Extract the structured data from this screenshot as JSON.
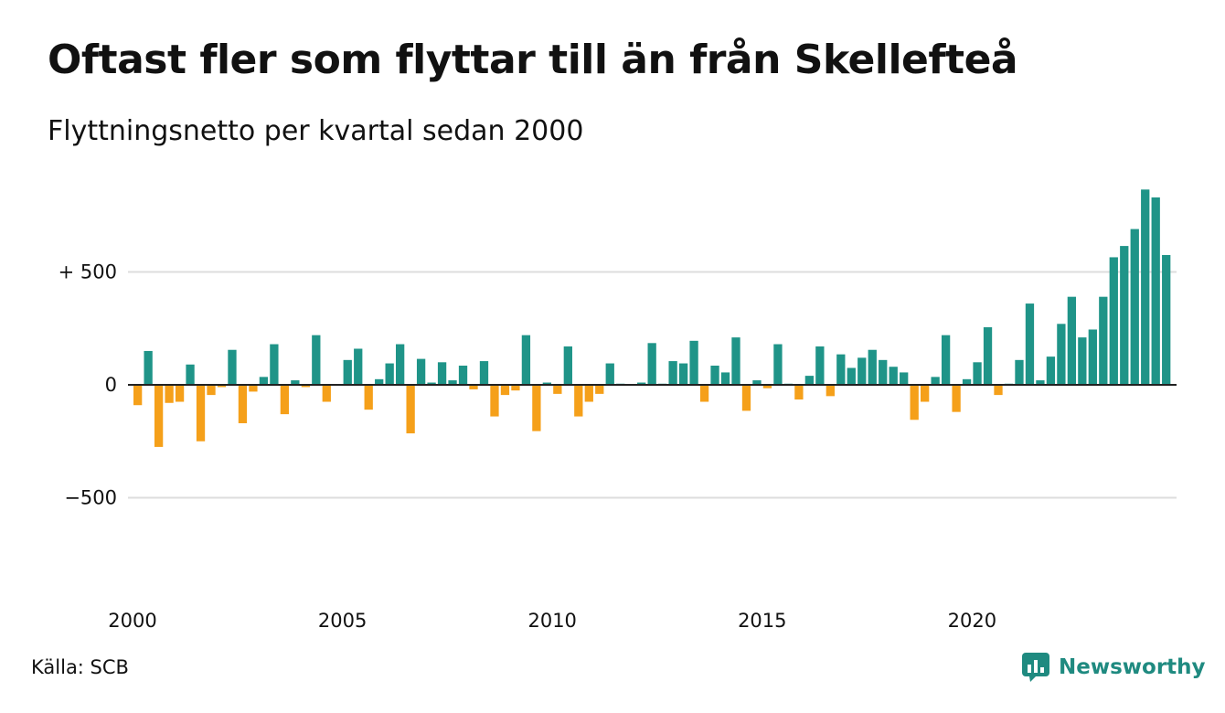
{
  "title": "Oftast fler som flyttar till än från Skellefteå",
  "subtitle": "Flyttningsnetto per kvartal sedan 2000",
  "source": "Källa: SCB",
  "brand": {
    "name": "Newsworthy",
    "icon": "chart-bubble-icon"
  },
  "colors": {
    "positive": "#1f9488",
    "negative": "#f5a01a",
    "grid": "#dddddd",
    "brand": "#1f8a80"
  },
  "chart_data": {
    "type": "bar",
    "title": "Oftast fler som flyttar till än från Skellefteå",
    "subtitle": "Flyttningsnetto per kvartal sedan 2000",
    "xlabel": "",
    "ylabel": "",
    "ylim": [
      -850,
      850
    ],
    "grid": true,
    "y_ticks": [
      {
        "value": 500,
        "label": "+ 500"
      },
      {
        "value": 0,
        "label": "0"
      },
      {
        "value": -500,
        "label": "−500"
      }
    ],
    "x_ticks": [
      {
        "value": 2000,
        "label": "2000"
      },
      {
        "value": 2005,
        "label": "2005"
      },
      {
        "value": 2010,
        "label": "2010"
      },
      {
        "value": 2015,
        "label": "2015"
      },
      {
        "value": 2020,
        "label": "2020"
      }
    ],
    "start_year": 2000,
    "periods_per_year": 4,
    "values": [
      -90,
      150,
      -275,
      -80,
      -75,
      90,
      -250,
      -45,
      -10,
      155,
      -170,
      -30,
      35,
      180,
      -130,
      20,
      -10,
      220,
      -75,
      0,
      110,
      160,
      -110,
      25,
      95,
      180,
      -215,
      115,
      10,
      100,
      20,
      85,
      -20,
      105,
      -140,
      -45,
      -25,
      220,
      -205,
      10,
      -40,
      170,
      -140,
      -75,
      -40,
      95,
      5,
      0,
      10,
      185,
      5,
      105,
      95,
      195,
      -75,
      85,
      55,
      210,
      -115,
      20,
      -15,
      180,
      5,
      -65,
      40,
      170,
      -50,
      135,
      75,
      120,
      155,
      110,
      80,
      55,
      -155,
      -75,
      35,
      220,
      -120,
      25,
      100,
      255,
      -45,
      5,
      110,
      360,
      20,
      125,
      270,
      390,
      210,
      245,
      390,
      565,
      615,
      690,
      865,
      830,
      575
    ]
  }
}
